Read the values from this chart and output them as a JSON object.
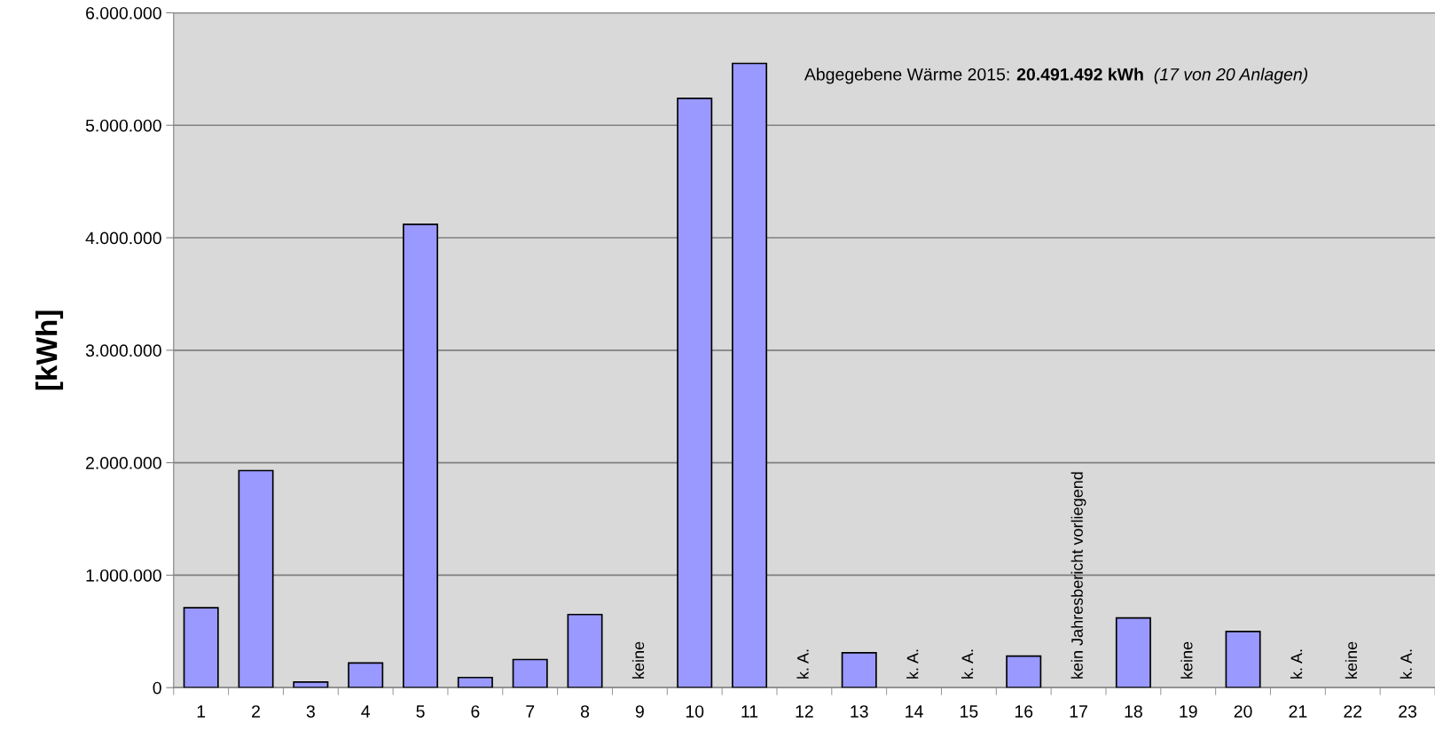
{
  "chart_data": {
    "type": "bar",
    "ylabel": "[kWh]",
    "categories": [
      "1",
      "2",
      "3",
      "4",
      "5",
      "6",
      "7",
      "8",
      "9",
      "10",
      "11",
      "12",
      "13",
      "14",
      "15",
      "16",
      "17",
      "18",
      "19",
      "20",
      "21",
      "22",
      "23"
    ],
    "values": [
      710000,
      1930000,
      50000,
      220000,
      4120000,
      90000,
      250000,
      650000,
      null,
      5240000,
      5550000,
      null,
      310000,
      null,
      null,
      280000,
      null,
      620000,
      null,
      500000,
      null,
      null,
      null
    ],
    "value_labels": [
      null,
      null,
      null,
      null,
      null,
      null,
      null,
      null,
      "keine",
      null,
      null,
      "k. A.",
      null,
      "k. A.",
      "k. A.",
      null,
      "kein Jahresbericht vorliegend",
      null,
      "keine",
      null,
      "k. A.",
      "keine",
      "k. A."
    ],
    "color": "#9999ff",
    "ylim": [
      0,
      6000000
    ],
    "yticks": [
      0,
      {
        "value": 1000000,
        "label": "1.000.000"
      },
      {
        "value": 2000000,
        "label": "2.000.000"
      },
      {
        "value": 3000000,
        "label": "3.000.000"
      },
      {
        "value": 4000000,
        "label": "4.000.000"
      },
      {
        "value": 5000000,
        "label": "5.000.000"
      },
      {
        "value": 6000000,
        "label": "6.000.000"
      }
    ],
    "grid": "y",
    "annotations": [
      "Abgegebene Wärme 2015: ",
      "20.491.492 kWh",
      "  (17 von 20 Anlagen)"
    ]
  }
}
